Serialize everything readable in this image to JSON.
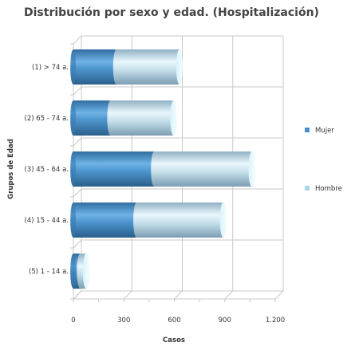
{
  "chart_data": {
    "type": "bar",
    "orientation": "horizontal",
    "stacked": true,
    "title": "Distribución por sexo y edad. (Hospitalización)",
    "xlabel": "Casos",
    "ylabel": "Grupos de Edad",
    "categories": [
      "(1) > 74 a.",
      "(2) 65 - 74 a.",
      "(3) 45 - 64 a.",
      "(4) 15 - 44 a.",
      "(5) 1 - 14 a."
    ],
    "series": [
      {
        "name": "Mujer",
        "values": [
          255,
          220,
          480,
          375,
          40
        ],
        "color": "#4a90c8"
      },
      {
        "name": "Hombre",
        "values": [
          375,
          375,
          580,
          515,
          35
        ],
        "color": "#a9d4f0"
      }
    ],
    "xlim": [
      0,
      1200
    ],
    "xticks": [
      0,
      300,
      600,
      900,
      1200
    ],
    "xtick_labels": [
      "0",
      "300",
      "600",
      "900",
      "1.200"
    ],
    "grid": true,
    "legend_position": "right"
  }
}
